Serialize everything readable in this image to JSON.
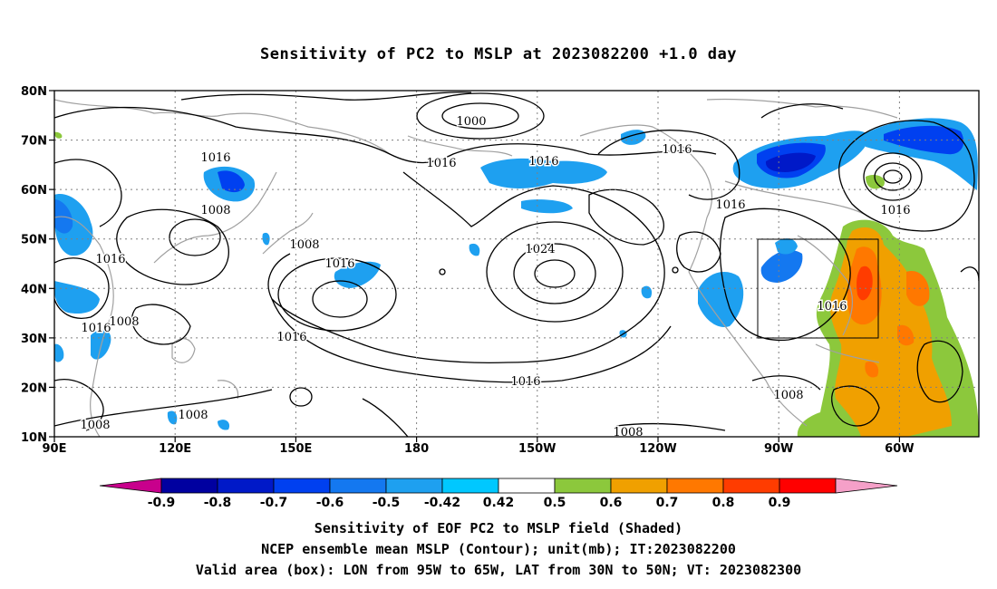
{
  "title": "Sensitivity of PC2 to MSLP at 2023082200 +1.0 day",
  "lat_labels": [
    "80N",
    "70N",
    "60N",
    "50N",
    "40N",
    "30N",
    "20N",
    "10N"
  ],
  "lon_labels": [
    "90E",
    "120E",
    "150E",
    "180",
    "150W",
    "120W",
    "90W",
    "60W"
  ],
  "contour_labels": [
    {
      "text": "1000"
    },
    {
      "text": "1016"
    },
    {
      "text": "1016"
    },
    {
      "text": "1016"
    },
    {
      "text": "1016"
    },
    {
      "text": "1016"
    },
    {
      "text": "1016"
    },
    {
      "text": "1008"
    },
    {
      "text": "1008"
    },
    {
      "text": "1016"
    },
    {
      "text": "1016"
    },
    {
      "text": "1024"
    },
    {
      "text": "1016"
    },
    {
      "text": "1016"
    },
    {
      "text": "1008"
    },
    {
      "text": "1016"
    },
    {
      "text": "1008"
    },
    {
      "text": "1016"
    },
    {
      "text": "1008"
    },
    {
      "text": "1008"
    },
    {
      "text": "1008"
    },
    {
      "text": "1008"
    }
  ],
  "colorbar": {
    "labels": [
      "-0.9",
      "-0.8",
      "-0.7",
      "-0.6",
      "-0.5",
      "-0.42",
      "0.42",
      "0.5",
      "0.6",
      "0.7",
      "0.8",
      "0.9"
    ],
    "colors": [
      "#c8008c",
      "#0000a0",
      "#0019c8",
      "#0040f0",
      "#1478f0",
      "#1ea0f0",
      "#00c8ff",
      "#ffffff",
      "#8cc83c",
      "#f0a000",
      "#ff7800",
      "#ff3c00",
      "#ff0000",
      "#f5a0c8"
    ]
  },
  "captions": {
    "line1": "Sensitivity of EOF PC2 to MSLP field (Shaded)",
    "line2": "NCEP ensemble mean MSLP (Contour); unit(mb); IT:2023082200",
    "line3": "Valid area (box): LON from 95W to 65W, LAT from 30N to 50N; VT: 2023082300"
  }
}
